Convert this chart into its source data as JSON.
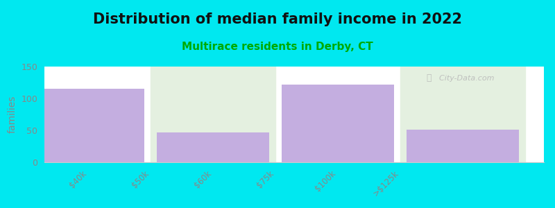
{
  "title": "Distribution of median family income in 2022",
  "subtitle": "Multirace residents in Derby, CT",
  "ylabel": "families",
  "bar_positions": [
    0.5,
    2.5,
    4.5,
    6.5
  ],
  "bar_values": [
    115,
    47,
    122,
    51
  ],
  "bar_color": "#c4aee0",
  "bg_color": "#00e8f0",
  "plot_bg_color": "#ffffff",
  "band_color": "#e4f0e0",
  "band_ranges": [
    [
      1.5,
      3.5
    ],
    [
      5.5,
      7.5
    ]
  ],
  "ylim": [
    0,
    150
  ],
  "yticks": [
    0,
    50,
    100,
    150
  ],
  "watermark": "City-Data.com",
  "title_fontsize": 15,
  "subtitle_fontsize": 11,
  "subtitle_color": "#00aa00",
  "ylabel_color": "#888888",
  "tick_label_color": "#888888",
  "bar_width": 1.8,
  "tick_positions": [
    0.5,
    1.5,
    2.5,
    3.5,
    4.5,
    5.5
  ],
  "tick_labels": [
    "$40k",
    "$50k",
    "$60k",
    "$75k",
    "$100k",
    ">$125k"
  ],
  "xlim": [
    -0.2,
    7.8
  ]
}
